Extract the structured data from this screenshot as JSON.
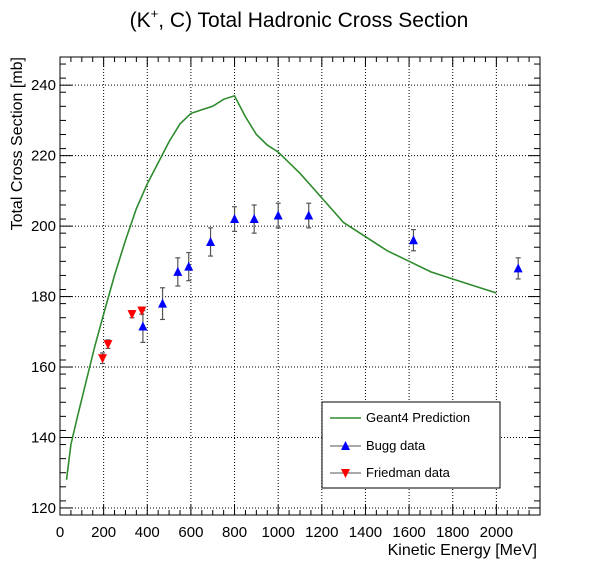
{
  "chart_data": {
    "type": "scatter",
    "title_main": "(K",
    "title_sup": "+",
    "title_rest": ", C) Total Hadronic Cross Section",
    "xlabel": "Kinetic Energy [MeV]",
    "ylabel": "Total Cross Section [mb]",
    "xlim": [
      0,
      2200
    ],
    "ylim": [
      118,
      248
    ],
    "xticks": [
      0,
      200,
      400,
      600,
      800,
      1000,
      1200,
      1400,
      1600,
      1800,
      2000
    ],
    "yticks": [
      120,
      140,
      160,
      180,
      200,
      220,
      240
    ],
    "grid": true,
    "legend_position": "bottom-right",
    "colors": {
      "prediction": "#2e8b2e",
      "bugg": "#0000ff",
      "friedman": "#ff0000",
      "errorbar": "#555555"
    },
    "series": [
      {
        "name": "Geant4 Prediction",
        "kind": "line",
        "x": [
          30,
          50,
          80,
          120,
          160,
          200,
          250,
          300,
          350,
          400,
          450,
          500,
          550,
          600,
          650,
          700,
          750,
          800,
          850,
          900,
          950,
          1000,
          1100,
          1200,
          1300,
          1400,
          1500,
          1600,
          1700,
          1800,
          1900,
          2000
        ],
        "y": [
          128,
          138,
          146,
          156,
          166,
          175,
          186,
          196,
          205,
          212,
          218,
          224,
          229,
          232,
          233,
          234,
          236,
          237,
          231,
          226,
          223,
          221,
          215,
          208,
          201,
          197,
          193,
          190,
          187,
          185,
          183,
          181
        ]
      },
      {
        "name": "Bugg data",
        "kind": "points",
        "marker": "triangle-up",
        "x": [
          380,
          470,
          540,
          590,
          690,
          800,
          890,
          1000,
          1140,
          1620,
          2100
        ],
        "y": [
          171.5,
          178,
          187,
          188.5,
          195.5,
          202,
          202,
          203,
          203,
          196,
          188
        ],
        "err": [
          4.5,
          4.5,
          4,
          4,
          4,
          3.5,
          4,
          3.5,
          3.5,
          3,
          3
        ]
      },
      {
        "name": "Friedman data",
        "kind": "points",
        "marker": "triangle-down",
        "x": [
          195,
          220,
          330,
          375
        ],
        "y": [
          162.5,
          166.5,
          175,
          176
        ],
        "err": [
          1.5,
          1.2,
          1.0,
          1.0
        ]
      }
    ]
  }
}
